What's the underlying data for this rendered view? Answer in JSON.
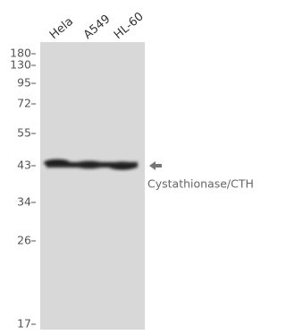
{
  "lanes": [
    "Hela",
    "A549",
    "HL-60"
  ],
  "markers": [
    "180",
    "130",
    "95",
    "72",
    "55",
    "43",
    "34",
    "26",
    "17"
  ],
  "target": "Cystathionase/CTH"
}
